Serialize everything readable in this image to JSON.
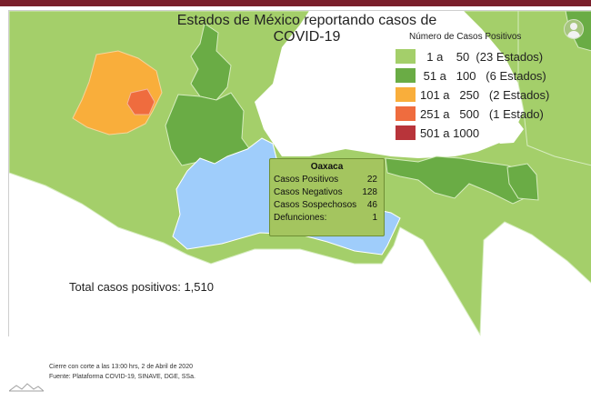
{
  "map": {
    "title": "Estados de México reportando casos de COVID-19",
    "total_label": "Total casos positivos: 1,510"
  },
  "legend": {
    "heading": "Número de Casos Positivos",
    "items": [
      {
        "label": "  1 a    50  (23 Estados)",
        "color": "#a4cf6a"
      },
      {
        "label": " 51 a   100   (6 Estados)",
        "color": "#6aac45"
      },
      {
        "label": "101 a   250   (2 Estados)",
        "color": "#f9ae3b"
      },
      {
        "label": "251 a   500   (1 Estado)",
        "color": "#ef6c3e"
      },
      {
        "label": "501 a 1000",
        "color": "#b8343a"
      }
    ]
  },
  "tooltip": {
    "state": "Oaxaca",
    "rows": [
      {
        "label": "Casos Positivos",
        "value": "22"
      },
      {
        "label": "Casos Negativos",
        "value": "128"
      },
      {
        "label": "Casos Sospechosos",
        "value": "46"
      },
      {
        "label": "Defunciones:",
        "value": "1"
      }
    ]
  },
  "footer": {
    "cutoff": "Cierre con corte a las 13:00 hrs, 2 de Abril de 2020",
    "source": "Fuente: Plataforma COVID-19, SINAVE, DGE, SSa."
  },
  "colors": {
    "light_green": "#a4cf6a",
    "green": "#6aac45",
    "orange": "#f9ae3b",
    "red_orange": "#ef6c3e",
    "dark_red": "#b8343a",
    "highlight": "#9fcdfb",
    "header_bar": "#7a1f2b"
  },
  "icons": {
    "user": "user-avatar-icon",
    "logo": "mountain-logo-icon"
  }
}
